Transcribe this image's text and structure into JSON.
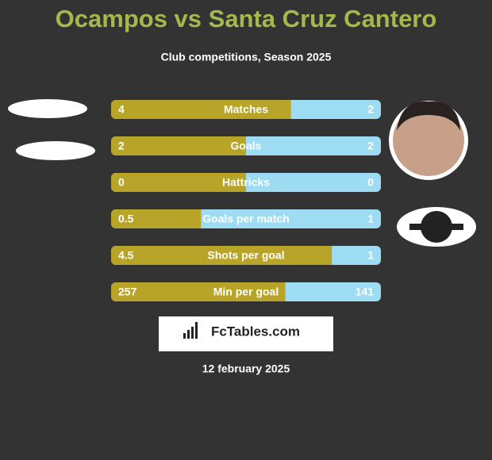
{
  "header": {
    "title": "Ocampos vs Santa Cruz Cantero",
    "subtitle": "Club competitions, Season 2025"
  },
  "rows": [
    {
      "label": "Matches",
      "left": 4,
      "right": 2
    },
    {
      "label": "Goals",
      "left": 2,
      "right": 2
    },
    {
      "label": "Hattricks",
      "left": 0,
      "right": 0
    },
    {
      "label": "Goals per match",
      "left": 0.5,
      "right": 1
    },
    {
      "label": "Shots per goal",
      "left": 4.5,
      "right": 1
    },
    {
      "label": "Min per goal",
      "left": 257,
      "right": 141
    }
  ],
  "colors": {
    "left": "#b9a42a",
    "right": "#9ddcf2"
  },
  "brand": "FcTables.com",
  "date": "12 february 2025"
}
